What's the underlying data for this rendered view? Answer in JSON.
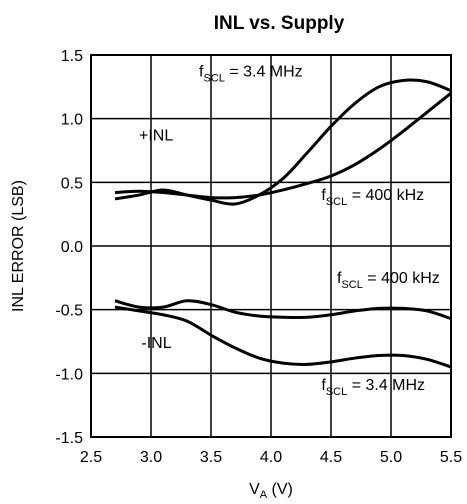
{
  "chart_data": {
    "type": "line",
    "title": "INL vs. Supply",
    "xlabel": "V",
    "xlabel_sub": "A",
    "xlabel_unit": " (V)",
    "ylabel": "INL ERROR (LSB)",
    "xlim": [
      2.5,
      5.5
    ],
    "ylim": [
      -1.5,
      1.5
    ],
    "x_ticks": [
      2.5,
      3.0,
      3.5,
      4.0,
      4.5,
      5.0,
      5.5
    ],
    "x_tick_labels": [
      "2.5",
      "3.0",
      "3.5",
      "4.0",
      "4.5",
      "5.0",
      "5.5"
    ],
    "y_ticks": [
      1.5,
      1.0,
      0.5,
      0.0,
      -0.5,
      -1.0,
      -1.5
    ],
    "y_tick_labels": [
      "1.5",
      "1.0",
      "0.5",
      "0.0",
      "-0.5",
      "-1.0",
      "-1.5"
    ],
    "grid": true,
    "series": [
      {
        "x": [
          2.7,
          2.9,
          3.1,
          3.3,
          3.5,
          3.7,
          3.9,
          4.1,
          4.3,
          4.5,
          4.7,
          4.9,
          5.1,
          5.3,
          5.5
        ],
        "y": [
          0.37,
          0.4,
          0.44,
          0.4,
          0.36,
          0.33,
          0.4,
          0.53,
          0.73,
          0.94,
          1.12,
          1.25,
          1.3,
          1.29,
          1.22
        ]
      },
      {
        "x": [
          2.7,
          2.9,
          3.1,
          3.3,
          3.5,
          3.7,
          3.9,
          4.1,
          4.3,
          4.5,
          4.7,
          4.9,
          5.1,
          5.3,
          5.5
        ],
        "y": [
          0.42,
          0.43,
          0.42,
          0.4,
          0.38,
          0.38,
          0.4,
          0.44,
          0.49,
          0.55,
          0.64,
          0.76,
          0.9,
          1.05,
          1.2
        ]
      },
      {
        "x": [
          2.7,
          2.9,
          3.1,
          3.3,
          3.5,
          3.7,
          3.9,
          4.1,
          4.3,
          4.5,
          4.7,
          4.9,
          5.1,
          5.3,
          5.5
        ],
        "y": [
          -0.43,
          -0.48,
          -0.48,
          -0.43,
          -0.46,
          -0.52,
          -0.55,
          -0.56,
          -0.56,
          -0.54,
          -0.51,
          -0.49,
          -0.49,
          -0.51,
          -0.57
        ]
      },
      {
        "x": [
          2.7,
          2.9,
          3.1,
          3.3,
          3.5,
          3.7,
          3.9,
          4.1,
          4.3,
          4.5,
          4.7,
          4.9,
          5.1,
          5.3,
          5.5
        ],
        "y": [
          -0.48,
          -0.51,
          -0.54,
          -0.59,
          -0.7,
          -0.8,
          -0.88,
          -0.92,
          -0.93,
          -0.91,
          -0.88,
          -0.86,
          -0.86,
          -0.89,
          -0.95
        ]
      }
    ],
    "annotations": [
      {
        "name": "fscl-3.4mhz-upper",
        "main": "f",
        "sub": "SCL",
        "rest": " = 3.4 MHz",
        "x": 3.4,
        "y": 1.33
      },
      {
        "name": "plus-inl",
        "main": "+INL",
        "sub": "",
        "rest": "",
        "x": 2.9,
        "y": 0.83
      },
      {
        "name": "fscl-400khz-upper",
        "main": "f",
        "sub": "SCL",
        "rest": " = 400 kHz",
        "x": 4.42,
        "y": 0.36
      },
      {
        "name": "fscl-400khz-lower",
        "main": "f",
        "sub": "SCL",
        "rest": " = 400 kHz",
        "x": 4.55,
        "y": -0.29
      },
      {
        "name": "minus-inl",
        "main": "-INL",
        "sub": "",
        "rest": "",
        "x": 2.92,
        "y": -0.8
      },
      {
        "name": "fscl-3.4mhz-lower",
        "main": "f",
        "sub": "SCL",
        "rest": " = 3.4 MHz",
        "x": 4.42,
        "y": -1.13
      }
    ]
  }
}
